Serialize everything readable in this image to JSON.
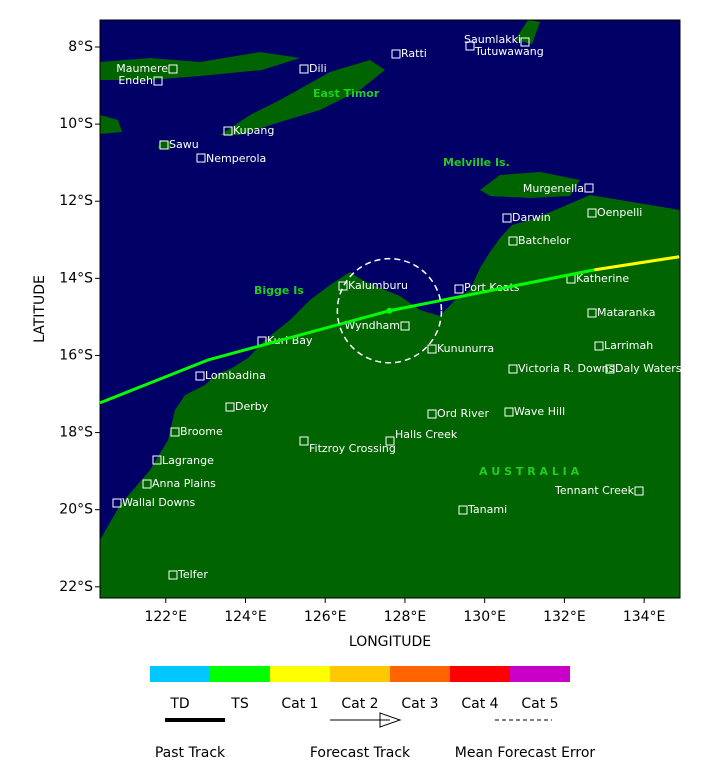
{
  "map": {
    "x_axis_label": "LONGITUDE",
    "y_axis_label": "LATITUDE",
    "xlim": [
      120.35,
      134.9
    ],
    "ylim": [
      -22.29,
      -7.3
    ],
    "xticks": [
      {
        "value": 122,
        "label": "122°E"
      },
      {
        "value": 124,
        "label": "124°E"
      },
      {
        "value": 126,
        "label": "126°E"
      },
      {
        "value": 128,
        "label": "128°E"
      },
      {
        "value": 130,
        "label": "130°E"
      },
      {
        "value": 132,
        "label": "132°E"
      },
      {
        "value": 134,
        "label": "134°E"
      }
    ],
    "yticks": [
      {
        "value": -8,
        "label": "8°S"
      },
      {
        "value": -10,
        "label": "10°S"
      },
      {
        "value": -12,
        "label": "12°S"
      },
      {
        "value": -14,
        "label": "14°S"
      },
      {
        "value": -16,
        "label": "16°S"
      },
      {
        "value": -18,
        "label": "18°S"
      },
      {
        "value": -20,
        "label": "20°S"
      },
      {
        "value": -22,
        "label": "22°S"
      }
    ],
    "region_labels": [
      "East Timor",
      "Melville Is.",
      "Bigge Is",
      "A U S T R A L I A"
    ],
    "places": [
      "Saumlakki",
      "Tutuwawang",
      "Ratti",
      "Dili",
      "Maumere",
      "Endeh",
      "Kupang",
      "Sawu",
      "Nemperola",
      "Murgenella",
      "Darwin",
      "Oenpelli",
      "Batchelor",
      "Kalumburu",
      "Port Keats",
      "Katherine",
      "Wyndham",
      "Mataranka",
      "Kuri Bay",
      "Kununurra",
      "Larrimah",
      "Lombadina",
      "Victoria R. Downs",
      "Daly Waters",
      "Derby",
      "Ord River",
      "Wave Hill",
      "Broome",
      "Halls Creek",
      "Fitzroy Crossing",
      "Lagrange",
      "Anna Plains",
      "Tennant Creek",
      "Wallal Downs",
      "Tanami",
      "Telfer"
    ],
    "track": {
      "lon": [
        120.35,
        123.05,
        127.61,
        132.75,
        134.88
      ],
      "lat": [
        -17.23,
        -16.12,
        -14.84,
        -13.78,
        -13.44
      ],
      "intensity": [
        "TS",
        "TS",
        "TS",
        "TS",
        "Cat 1"
      ]
    },
    "error_circle": {
      "lon": 127.61,
      "lat": -14.84,
      "radius_deg": 1.35
    }
  },
  "legend": {
    "categories": [
      {
        "name": "TD",
        "color": "#00c8ff"
      },
      {
        "name": "TS",
        "color": "#00ff00"
      },
      {
        "name": "Cat 1",
        "color": "#ffff00"
      },
      {
        "name": "Cat 2",
        "color": "#ffc800"
      },
      {
        "name": "Cat 3",
        "color": "#ff6400"
      },
      {
        "name": "Cat 4",
        "color": "#ff0000"
      },
      {
        "name": "Cat 5",
        "color": "#c800c8"
      }
    ],
    "items": [
      "Past Track",
      "Forecast Track",
      "Mean Forecast Error"
    ]
  }
}
